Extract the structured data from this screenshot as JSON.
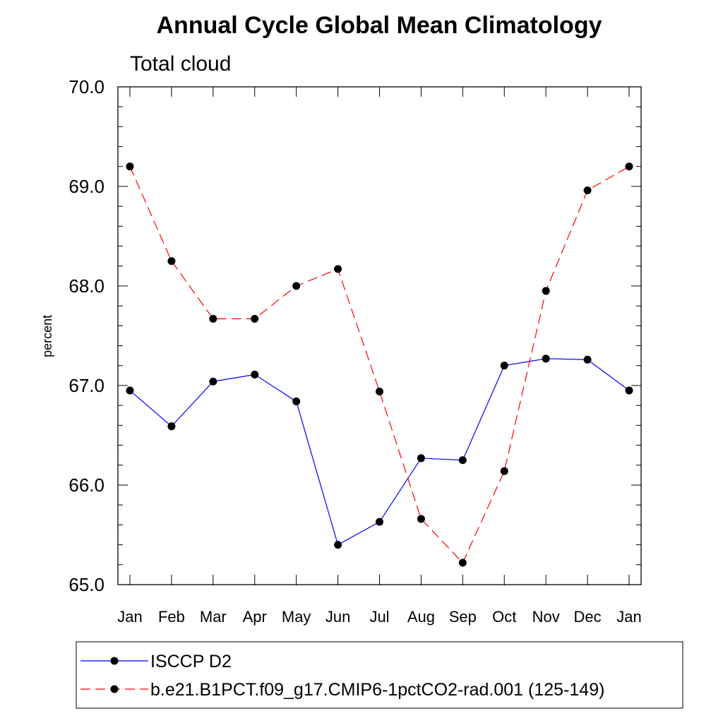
{
  "chart_data": {
    "type": "line",
    "title": "Annual Cycle Global Mean Climatology",
    "subtitle": "Total cloud",
    "xlabel": "",
    "ylabel": "percent",
    "categories": [
      "Jan",
      "Feb",
      "Mar",
      "Apr",
      "May",
      "Jun",
      "Jul",
      "Aug",
      "Sep",
      "Oct",
      "Nov",
      "Dec",
      "Jan"
    ],
    "ylim": [
      65.0,
      70.0
    ],
    "yticks": [
      65.0,
      66.0,
      67.0,
      68.0,
      69.0,
      70.0
    ],
    "ytick_labels": [
      "65.0",
      "66.0",
      "67.0",
      "68.0",
      "69.0",
      "70.0"
    ],
    "grid": false,
    "legend_position": "bottom",
    "series": [
      {
        "name": "ISCCP D2",
        "color": "#0000ff",
        "dash": "solid",
        "marker": "filled-circle",
        "values": [
          66.95,
          66.59,
          67.04,
          67.11,
          66.84,
          65.4,
          65.63,
          66.27,
          66.25,
          67.2,
          67.27,
          67.26,
          66.95
        ]
      },
      {
        "name": "b.e21.B1PCT.f09_g17.CMIP6-1pctCO2-rad.001 (125-149)",
        "color": "#ff0000",
        "dash": "dashed",
        "marker": "filled-circle",
        "values": [
          69.2,
          68.25,
          67.67,
          67.67,
          68.0,
          68.17,
          66.94,
          65.66,
          65.22,
          66.14,
          67.95,
          68.96,
          69.2
        ]
      }
    ]
  }
}
